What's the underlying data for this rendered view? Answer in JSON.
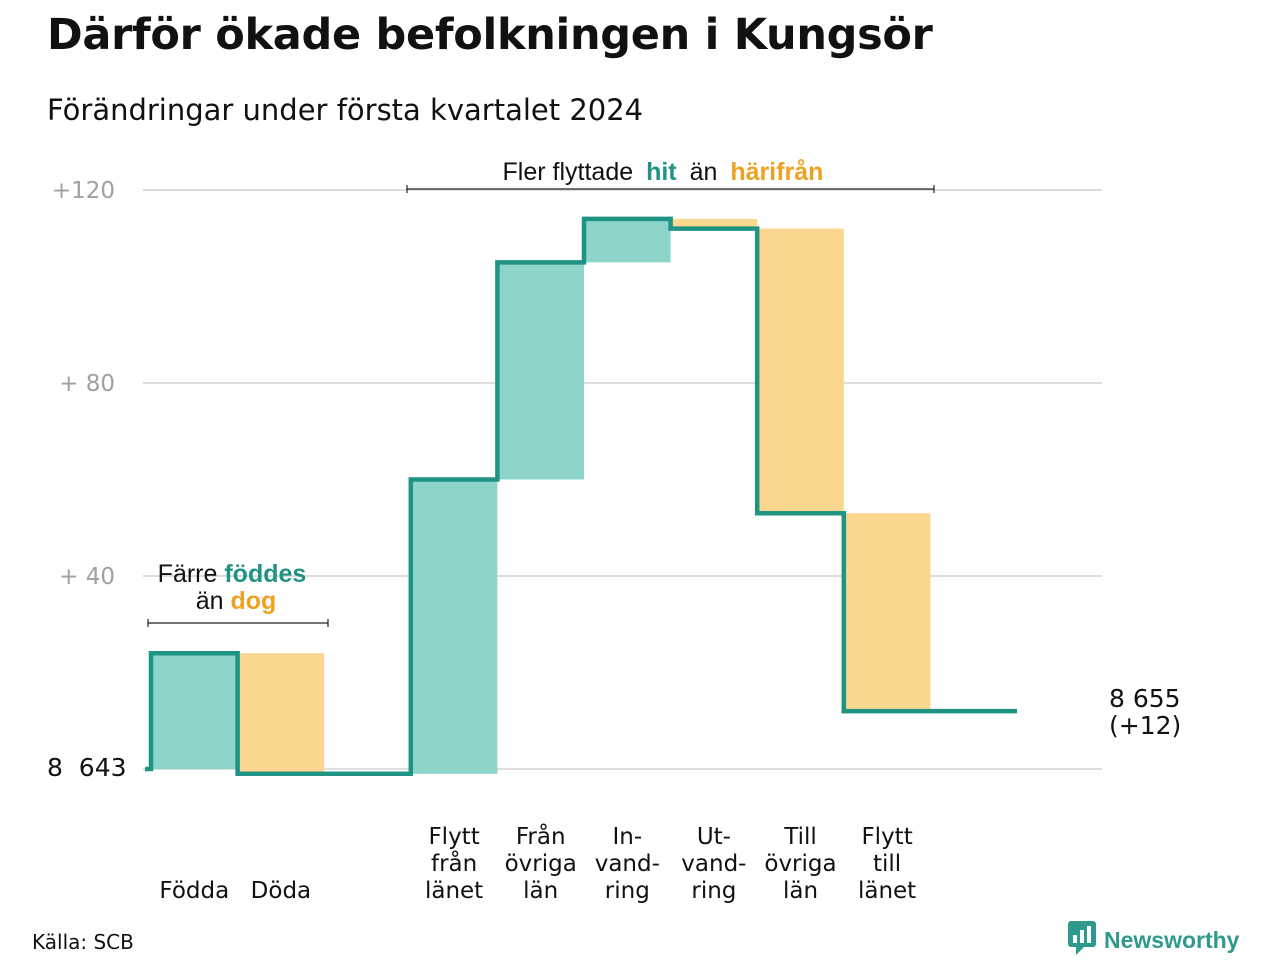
{
  "title": "Därför ökade befolkningen i Kungsör",
  "subtitle": "Förändringar under första kvartalet 2024",
  "source": "Källa: SCB",
  "brand": "Newsworthy",
  "colors": {
    "increase_fill": "#8dd5cb",
    "decrease_fill": "#fbd68e",
    "line": "#1f9384",
    "teal_text": "#1f9384",
    "orange_text": "#eea221",
    "grid": "#dddddd",
    "tick_text": "#a0a0a0"
  },
  "annotations": {
    "natural": {
      "line1_plain": "Färre",
      "line1_highlight": "föddes",
      "line2_plain": "än",
      "line2_highlight": "dog"
    },
    "migration": {
      "plain1": "Fler flyttade",
      "highlight1": "hit",
      "plain2": "än",
      "highlight2": "härifrån"
    }
  },
  "chart_data": {
    "type": "waterfall",
    "start": {
      "label": "8  643",
      "value": 8643
    },
    "end": {
      "label_value": "8 655",
      "label_change": "(+12)",
      "value": 8655
    },
    "yaxis": {
      "ticks": [
        {
          "value": 0,
          "label": ""
        },
        {
          "value": 40,
          "label": "+  40"
        },
        {
          "value": 80,
          "label": "+  80"
        },
        {
          "value": 120,
          "label": "+120"
        }
      ],
      "ylim": [
        0,
        120
      ],
      "grid": true
    },
    "steps": [
      {
        "label": [
          "Födda"
        ],
        "change": 24
      },
      {
        "label": [
          "Döda"
        ],
        "change": -25
      },
      {
        "label": [],
        "change": 0
      },
      {
        "label": [
          "Flytt",
          "från",
          "länet"
        ],
        "change": 61
      },
      {
        "label": [
          "Från",
          "övriga",
          "län"
        ],
        "change": 45
      },
      {
        "label": [
          "In-",
          "vand-",
          "ring"
        ],
        "change": 9
      },
      {
        "label": [
          "Ut-",
          "vand-",
          "ring"
        ],
        "change": -2
      },
      {
        "label": [
          "Till",
          "övriga",
          "län"
        ],
        "change": -59
      },
      {
        "label": [
          "Flytt",
          "till",
          "länet"
        ],
        "change": -41
      },
      {
        "label": [],
        "change": 0
      }
    ]
  }
}
